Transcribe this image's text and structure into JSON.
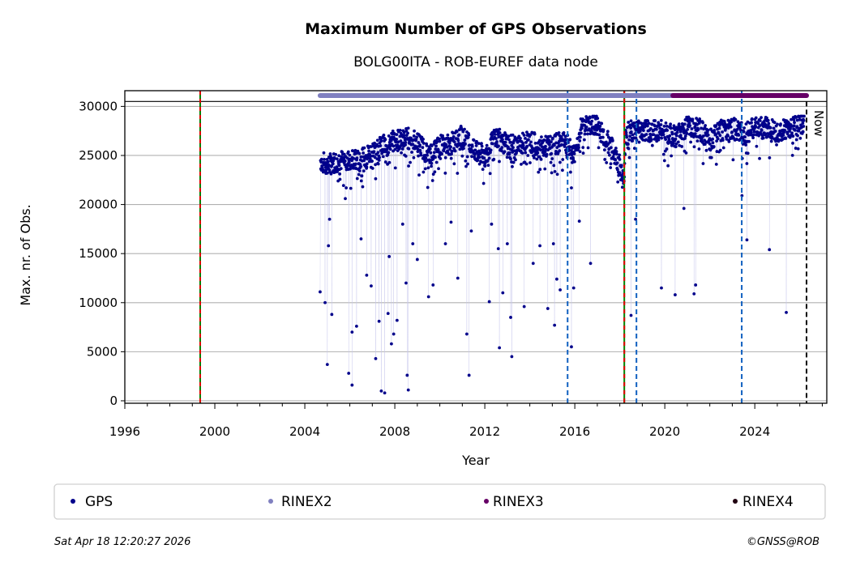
{
  "chart_data": {
    "type": "scatter",
    "title": "Maximum Number of GPS Observations",
    "subtitle": "BOLG00ITA - ROB-EUREF data node",
    "xlabel": "Year",
    "ylabel": "Max. nr. of Obs.",
    "xlim": [
      1996,
      2027.2
    ],
    "ylim": [
      -250,
      31600
    ],
    "xticks": [
      "1996",
      "2000",
      "2004",
      "2008",
      "2012",
      "2016",
      "2020",
      "2024"
    ],
    "yticks": [
      "0",
      "5000",
      "10000",
      "15000",
      "20000",
      "25000",
      "30000"
    ],
    "grid": "horizontal",
    "legend_placement": "bottom",
    "legend": [
      {
        "label": "GPS",
        "color": "#00008b"
      },
      {
        "label": "RINEX2",
        "color": "#8080c0"
      },
      {
        "label": "RINEX3",
        "color": "#660066"
      },
      {
        "label": "RINEX4",
        "color": "#200010"
      }
    ],
    "series": [
      {
        "name": "GPS",
        "color": "#00008b",
        "trend": [
          [
            2004.7,
            24500
          ],
          [
            2005.0,
            24000
          ],
          [
            2005.5,
            24500
          ],
          [
            2006.0,
            24500
          ],
          [
            2006.5,
            24500
          ],
          [
            2007.0,
            25500
          ],
          [
            2007.5,
            26000
          ],
          [
            2008.0,
            26500
          ],
          [
            2008.5,
            26800
          ],
          [
            2009.0,
            26500
          ],
          [
            2009.5,
            25000
          ],
          [
            2010.0,
            26000
          ],
          [
            2010.5,
            26200
          ],
          [
            2011.0,
            27000
          ],
          [
            2011.5,
            25500
          ],
          [
            2012.0,
            25000
          ],
          [
            2012.5,
            27000
          ],
          [
            2013.0,
            26000
          ],
          [
            2013.5,
            26000
          ],
          [
            2014.0,
            26500
          ],
          [
            2014.5,
            25800
          ],
          [
            2015.0,
            26000
          ],
          [
            2015.5,
            26500
          ],
          [
            2016.0,
            25000
          ],
          [
            2016.3,
            28000
          ],
          [
            2016.7,
            28200
          ],
          [
            2017.0,
            28000
          ],
          [
            2017.3,
            27000
          ],
          [
            2017.7,
            25500
          ],
          [
            2018.0,
            24000
          ],
          [
            2018.2,
            22000
          ],
          [
            2018.25,
            27500
          ],
          [
            2019.0,
            27500
          ],
          [
            2020.0,
            27500
          ],
          [
            2020.5,
            26800
          ],
          [
            2021.0,
            28000
          ],
          [
            2021.5,
            27800
          ],
          [
            2022.0,
            26500
          ],
          [
            2022.5,
            27500
          ],
          [
            2023.0,
            27800
          ],
          [
            2023.5,
            27200
          ],
          [
            2024.0,
            27800
          ],
          [
            2024.5,
            27800
          ],
          [
            2025.0,
            27500
          ],
          [
            2025.5,
            27800
          ],
          [
            2026.2,
            28300
          ]
        ],
        "outliers": [
          [
            2004.68,
            11100
          ],
          [
            2004.9,
            10000
          ],
          [
            2005.0,
            3700
          ],
          [
            2005.05,
            15800
          ],
          [
            2005.1,
            18500
          ],
          [
            2005.2,
            8800
          ],
          [
            2005.8,
            20600
          ],
          [
            2005.95,
            2800
          ],
          [
            2006.1,
            1600
          ],
          [
            2006.1,
            7000
          ],
          [
            2006.3,
            7600
          ],
          [
            2006.5,
            16500
          ],
          [
            2006.75,
            12800
          ],
          [
            2006.95,
            11700
          ],
          [
            2007.15,
            4300
          ],
          [
            2007.3,
            8100
          ],
          [
            2007.4,
            1000
          ],
          [
            2007.55,
            800
          ],
          [
            2007.7,
            8900
          ],
          [
            2007.75,
            14700
          ],
          [
            2007.85,
            5800
          ],
          [
            2007.95,
            6800
          ],
          [
            2008.1,
            8200
          ],
          [
            2008.35,
            18000
          ],
          [
            2008.5,
            12000
          ],
          [
            2008.55,
            2600
          ],
          [
            2008.6,
            1100
          ],
          [
            2008.8,
            16000
          ],
          [
            2009.0,
            14400
          ],
          [
            2009.5,
            10600
          ],
          [
            2009.7,
            11800
          ],
          [
            2010.25,
            16000
          ],
          [
            2010.5,
            18200
          ],
          [
            2010.8,
            12500
          ],
          [
            2011.3,
            2600
          ],
          [
            2011.2,
            6800
          ],
          [
            2011.4,
            17300
          ],
          [
            2012.2,
            10100
          ],
          [
            2012.3,
            18000
          ],
          [
            2012.6,
            15500
          ],
          [
            2012.65,
            5400
          ],
          [
            2012.8,
            11000
          ],
          [
            2013.0,
            16000
          ],
          [
            2013.2,
            4500
          ],
          [
            2013.15,
            8500
          ],
          [
            2013.75,
            9600
          ],
          [
            2014.15,
            14000
          ],
          [
            2014.45,
            15800
          ],
          [
            2014.8,
            9400
          ],
          [
            2015.05,
            16000
          ],
          [
            2015.1,
            7700
          ],
          [
            2015.2,
            12400
          ],
          [
            2015.35,
            11300
          ],
          [
            2015.85,
            5500
          ],
          [
            2015.85,
            21700
          ],
          [
            2015.95,
            11500
          ],
          [
            2016.2,
            18300
          ],
          [
            2016.7,
            14000
          ],
          [
            2018.5,
            8700
          ],
          [
            2018.7,
            18500
          ],
          [
            2019.85,
            11500
          ],
          [
            2020.46,
            10800
          ],
          [
            2020.85,
            19600
          ],
          [
            2021.3,
            10900
          ],
          [
            2021.37,
            11800
          ],
          [
            2023.43,
            20900
          ],
          [
            2023.65,
            16400
          ],
          [
            2024.65,
            15400
          ],
          [
            2025.4,
            9000
          ]
        ]
      }
    ],
    "rinex_bars": [
      {
        "name": "RINEX2",
        "start": 2004.68,
        "end": 2020.36,
        "color": "#8080c0"
      },
      {
        "name": "RINEX3",
        "start": 2020.36,
        "end": 2026.3,
        "color": "#660066"
      }
    ],
    "vlines": [
      {
        "kind": "equipment-change",
        "x": 1999.35
      },
      {
        "kind": "equipment-change",
        "x": 2018.2
      },
      {
        "kind": "receiver-change",
        "x": 2015.68
      },
      {
        "kind": "receiver-change",
        "x": 2018.74
      },
      {
        "kind": "receiver-change",
        "x": 2023.42
      },
      {
        "kind": "now",
        "x": 2026.3
      }
    ],
    "hline": 30500,
    "now_label": "Now"
  },
  "footer": {
    "timestamp": "Sat Apr 18 12:20:27 2026",
    "copyright": "©GNSS@ROB"
  }
}
